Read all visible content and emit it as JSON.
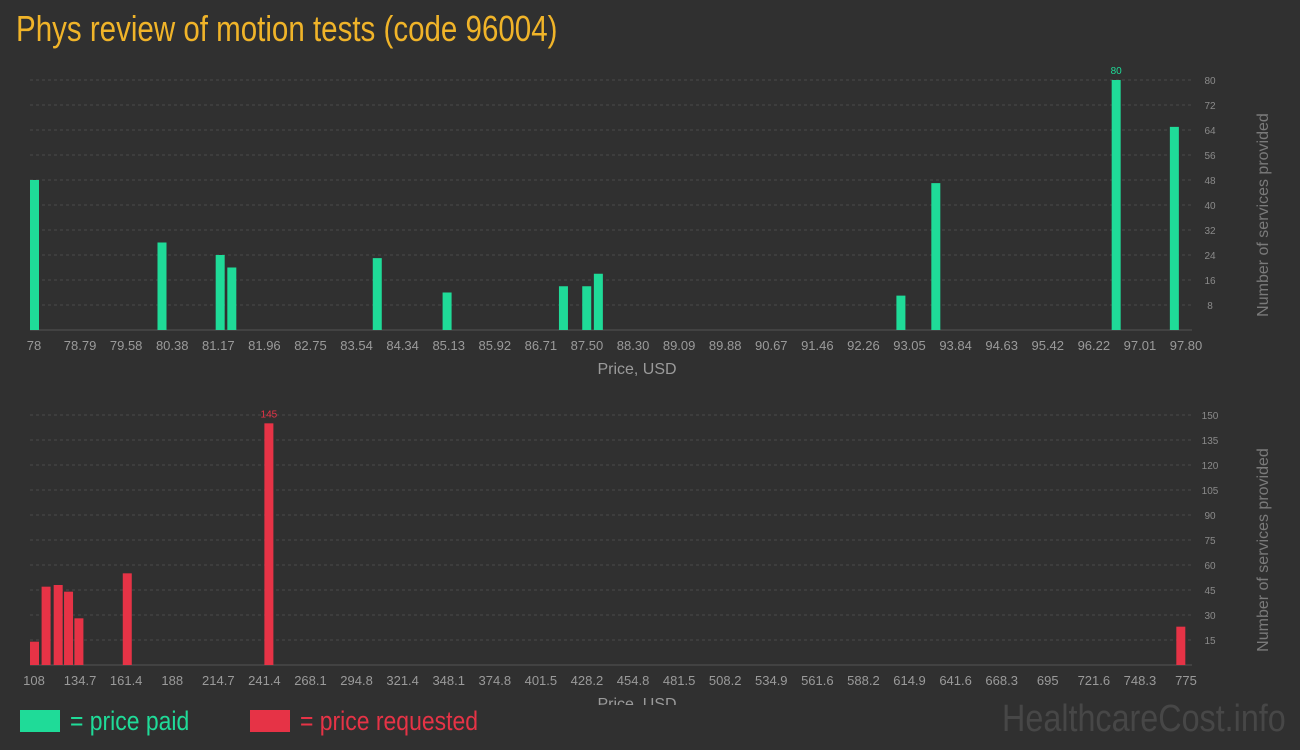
{
  "title": "Phys review of motion tests (code 96004)",
  "colors": {
    "paid": "#1fdb98",
    "requested": "#e63346",
    "title": "#f0b429"
  },
  "legend": {
    "paid": "= price paid",
    "requested": "= price requested"
  },
  "watermark": "HealthcareCost.info",
  "chart_data": [
    {
      "type": "bar",
      "series_name": "price paid",
      "color": "#1fdb98",
      "xlabel": "Price, USD",
      "ylabel": "Number of services provided",
      "xlim": [
        78,
        97.8
      ],
      "ylim": [
        0,
        80
      ],
      "x_ticks": [
        "78",
        "78.79",
        "79.58",
        "80.38",
        "81.17",
        "81.96",
        "82.75",
        "83.54",
        "84.34",
        "85.13",
        "85.92",
        "86.71",
        "87.50",
        "88.30",
        "89.09",
        "89.88",
        "90.67",
        "91.46",
        "92.26",
        "93.05",
        "93.84",
        "94.63",
        "95.42",
        "96.22",
        "97.01",
        "97.80"
      ],
      "y_ticks": [
        8,
        16,
        24,
        32,
        40,
        48,
        56,
        64,
        72,
        80
      ],
      "points": [
        {
          "x": 78.0,
          "y": 48
        },
        {
          "x": 80.2,
          "y": 28
        },
        {
          "x": 81.2,
          "y": 24
        },
        {
          "x": 81.4,
          "y": 20
        },
        {
          "x": 83.9,
          "y": 23
        },
        {
          "x": 85.1,
          "y": 12
        },
        {
          "x": 87.1,
          "y": 14
        },
        {
          "x": 87.5,
          "y": 14
        },
        {
          "x": 87.7,
          "y": 18
        },
        {
          "x": 92.9,
          "y": 11
        },
        {
          "x": 93.5,
          "y": 47
        },
        {
          "x": 96.6,
          "y": 80
        },
        {
          "x": 97.6,
          "y": 65
        }
      ],
      "max_label": "80"
    },
    {
      "type": "bar",
      "series_name": "price requested",
      "color": "#e63346",
      "xlabel": "Price, USD",
      "ylabel": "Number of services provided",
      "xlim": [
        108,
        775
      ],
      "ylim": [
        0,
        150
      ],
      "x_ticks": [
        "108",
        "134.7",
        "161.4",
        "188",
        "214.7",
        "241.4",
        "268.1",
        "294.8",
        "321.4",
        "348.1",
        "374.8",
        "401.5",
        "428.2",
        "454.8",
        "481.5",
        "508.2",
        "534.9",
        "561.6",
        "588.2",
        "614.9",
        "641.6",
        "668.3",
        "695",
        "721.6",
        "748.3",
        "775"
      ],
      "y_ticks": [
        15,
        30,
        45,
        60,
        75,
        90,
        105,
        120,
        135,
        150
      ],
      "points": [
        {
          "x": 108,
          "y": 14
        },
        {
          "x": 115,
          "y": 47
        },
        {
          "x": 122,
          "y": 48
        },
        {
          "x": 128,
          "y": 44
        },
        {
          "x": 134,
          "y": 28
        },
        {
          "x": 162,
          "y": 55
        },
        {
          "x": 244,
          "y": 145
        },
        {
          "x": 772,
          "y": 23
        }
      ],
      "max_label": "145"
    }
  ]
}
